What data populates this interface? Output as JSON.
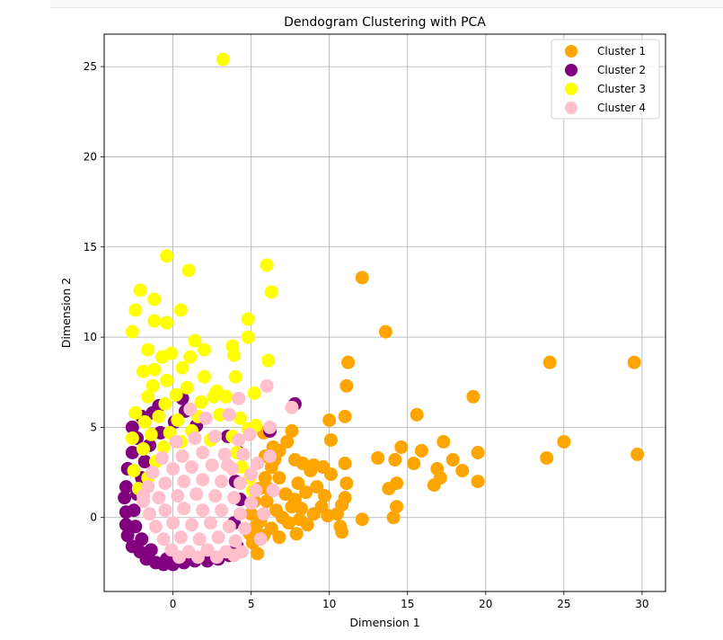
{
  "chart_data": {
    "type": "scatter",
    "title": "Dendogram Clustering with PCA",
    "xlabel": "Dimension 1",
    "ylabel": "Dimension 2",
    "xlim": [
      -4.4,
      31.5
    ],
    "ylim": [
      -4.1,
      26.8
    ],
    "xticks": [
      0,
      5,
      10,
      15,
      20,
      25,
      30
    ],
    "yticks": [
      0,
      5,
      10,
      15,
      20,
      25
    ],
    "grid": true,
    "legend_position": "top-right",
    "series": [
      {
        "name": "Cluster 1",
        "color": "#FFA500",
        "points": [
          [
            12.1,
            13.3
          ],
          [
            13.6,
            10.3
          ],
          [
            11.2,
            8.6
          ],
          [
            24.1,
            8.6
          ],
          [
            29.5,
            8.6
          ],
          [
            11.1,
            7.3
          ],
          [
            19.2,
            6.7
          ],
          [
            11.0,
            5.6
          ],
          [
            15.6,
            5.7
          ],
          [
            10.0,
            5.4
          ],
          [
            14.6,
            3.9
          ],
          [
            15.9,
            3.7
          ],
          [
            17.3,
            4.2
          ],
          [
            19.5,
            3.6
          ],
          [
            25.0,
            4.2
          ],
          [
            29.7,
            3.5
          ],
          [
            23.9,
            3.3
          ],
          [
            18.5,
            2.6
          ],
          [
            17.9,
            3.2
          ],
          [
            16.9,
            2.7
          ],
          [
            15.4,
            3.0
          ],
          [
            14.2,
            3.2
          ],
          [
            13.1,
            3.3
          ],
          [
            11.0,
            3.0
          ],
          [
            10.1,
            4.3
          ],
          [
            17.1,
            2.2
          ],
          [
            16.7,
            1.8
          ],
          [
            19.5,
            2.0
          ],
          [
            14.3,
            1.9
          ],
          [
            13.8,
            1.6
          ],
          [
            14.3,
            0.6
          ],
          [
            14.1,
            0.0
          ],
          [
            12.1,
            -0.1
          ],
          [
            11.1,
            1.9
          ],
          [
            11.0,
            1.1
          ],
          [
            10.8,
            0.7
          ],
          [
            10.5,
            0.2
          ],
          [
            10.7,
            -0.5
          ],
          [
            10.8,
            -0.8
          ],
          [
            10.1,
            2.4
          ],
          [
            9.6,
            2.8
          ],
          [
            9.0,
            2.9
          ],
          [
            8.8,
            2.6
          ],
          [
            8.3,
            3.0
          ],
          [
            7.8,
            3.2
          ],
          [
            7.6,
            4.8
          ],
          [
            7.3,
            4.2
          ],
          [
            6.8,
            3.7
          ],
          [
            6.4,
            3.9
          ],
          [
            5.8,
            4.7
          ],
          [
            8.0,
            1.9
          ],
          [
            8.5,
            1.4
          ],
          [
            9.2,
            1.7
          ],
          [
            9.5,
            0.6
          ],
          [
            9.0,
            0.2
          ],
          [
            8.6,
            -0.4
          ],
          [
            8.1,
            -0.1
          ],
          [
            7.6,
            0.6
          ],
          [
            7.2,
            1.3
          ],
          [
            6.8,
            2.2
          ],
          [
            6.3,
            2.8
          ],
          [
            5.9,
            2.2
          ],
          [
            5.5,
            1.6
          ],
          [
            5.2,
            0.9
          ],
          [
            5.0,
            0.2
          ],
          [
            5.3,
            -0.5
          ],
          [
            5.8,
            -1.0
          ],
          [
            6.3,
            -0.6
          ],
          [
            6.8,
            -1.1
          ],
          [
            7.4,
            -0.3
          ],
          [
            7.9,
            -0.9
          ],
          [
            8.2,
            0.5
          ],
          [
            6.6,
            0.4
          ],
          [
            6.0,
            0.9
          ],
          [
            5.6,
            -0.2
          ],
          [
            5.1,
            -1.4
          ],
          [
            5.4,
            -2.0
          ],
          [
            4.9,
            -0.9
          ],
          [
            6.1,
            1.6
          ],
          [
            7.0,
            0.0
          ],
          [
            7.8,
            1.0
          ],
          [
            6.5,
            3.2
          ],
          [
            5.9,
            3.4
          ],
          [
            9.7,
            1.2
          ],
          [
            9.9,
            0.1
          ]
        ]
      },
      {
        "name": "Cluster 2",
        "color": "#800080",
        "points": [
          [
            7.8,
            6.3
          ],
          [
            0.6,
            6.6
          ],
          [
            -0.9,
            6.2
          ],
          [
            -1.3,
            5.8
          ],
          [
            -2.0,
            5.6
          ],
          [
            -2.6,
            5.0
          ],
          [
            -2.3,
            4.4
          ],
          [
            -2.6,
            3.6
          ],
          [
            -2.9,
            2.7
          ],
          [
            -3.0,
            1.7
          ],
          [
            -3.1,
            1.1
          ],
          [
            -3.0,
            0.3
          ],
          [
            -3.0,
            -0.4
          ],
          [
            -2.9,
            -1.0
          ],
          [
            -2.6,
            -1.6
          ],
          [
            -2.1,
            -1.9
          ],
          [
            -1.7,
            -2.3
          ],
          [
            -1.1,
            -2.5
          ],
          [
            -0.6,
            -2.6
          ],
          [
            0.0,
            -2.6
          ],
          [
            -0.4,
            -2.3
          ],
          [
            -1.4,
            -1.8
          ],
          [
            -2.0,
            -1.2
          ],
          [
            -2.4,
            -0.5
          ],
          [
            -2.5,
            0.4
          ],
          [
            -2.3,
            1.3
          ],
          [
            -2.0,
            2.2
          ],
          [
            -1.8,
            3.1
          ],
          [
            -1.5,
            4.0
          ],
          [
            -0.8,
            4.7
          ],
          [
            0.1,
            5.3
          ],
          [
            0.8,
            5.9
          ],
          [
            1.5,
            5.1
          ],
          [
            3.5,
            4.5
          ],
          [
            4.2,
            3.6
          ],
          [
            6.2,
            4.8
          ],
          [
            4.0,
            2.0
          ],
          [
            4.3,
            1.0
          ],
          [
            3.9,
            -0.3
          ],
          [
            4.1,
            -1.6
          ],
          [
            3.6,
            -2.1
          ],
          [
            2.9,
            -2.3
          ],
          [
            2.2,
            -2.4
          ],
          [
            1.4,
            -2.4
          ],
          [
            0.7,
            -2.5
          ]
        ]
      },
      {
        "name": "Cluster 3",
        "color": "#FFFF00",
        "points": [
          [
            3.2,
            25.4
          ],
          [
            -0.4,
            14.5
          ],
          [
            1.0,
            13.7
          ],
          [
            6.0,
            14.0
          ],
          [
            6.3,
            12.5
          ],
          [
            -2.1,
            12.6
          ],
          [
            -1.2,
            12.1
          ],
          [
            -2.4,
            11.5
          ],
          [
            -0.4,
            10.8
          ],
          [
            0.5,
            11.5
          ],
          [
            -1.2,
            10.9
          ],
          [
            -2.6,
            10.3
          ],
          [
            4.8,
            11.0
          ],
          [
            4.8,
            10.0
          ],
          [
            1.4,
            9.8
          ],
          [
            2.0,
            9.3
          ],
          [
            3.8,
            9.5
          ],
          [
            3.9,
            9.0
          ],
          [
            -1.6,
            9.3
          ],
          [
            -0.7,
            8.9
          ],
          [
            -0.1,
            9.1
          ],
          [
            1.1,
            8.9
          ],
          [
            6.1,
            8.7
          ],
          [
            -1.9,
            8.1
          ],
          [
            -1.2,
            8.2
          ],
          [
            0.6,
            8.3
          ],
          [
            2.0,
            7.8
          ],
          [
            4.0,
            7.8
          ],
          [
            -1.3,
            7.3
          ],
          [
            -0.4,
            7.6
          ],
          [
            0.9,
            7.2
          ],
          [
            2.8,
            7.0
          ],
          [
            3.4,
            6.7
          ],
          [
            5.2,
            6.9
          ],
          [
            -1.6,
            6.7
          ],
          [
            -0.5,
            6.3
          ],
          [
            0.2,
            6.8
          ],
          [
            1.8,
            6.4
          ],
          [
            2.6,
            6.7
          ],
          [
            -2.4,
            5.8
          ],
          [
            -1.8,
            5.3
          ],
          [
            -0.9,
            5.6
          ],
          [
            0.3,
            5.4
          ],
          [
            1.6,
            5.6
          ],
          [
            3.0,
            5.7
          ],
          [
            4.3,
            5.5
          ],
          [
            -2.6,
            4.4
          ],
          [
            -1.4,
            4.6
          ],
          [
            -0.2,
            4.7
          ],
          [
            2.4,
            4.3
          ],
          [
            3.8,
            4.5
          ],
          [
            4.8,
            4.9
          ],
          [
            5.3,
            5.1
          ],
          [
            -1.9,
            3.8
          ],
          [
            -0.6,
            3.9
          ],
          [
            -2.5,
            2.6
          ],
          [
            -1.1,
            3.1
          ],
          [
            -1.6,
            2.2
          ],
          [
            -2.2,
            1.6
          ],
          [
            4.1,
            3.6
          ],
          [
            4.4,
            2.8
          ],
          [
            4.9,
            2.2
          ],
          [
            5.1,
            1.5
          ],
          [
            0.5,
            4.2
          ],
          [
            1.2,
            4.8
          ]
        ]
      },
      {
        "name": "Cluster 4",
        "color": "#FFC0CB",
        "points": [
          [
            6.0,
            7.3
          ],
          [
            4.2,
            6.6
          ],
          [
            7.6,
            6.1
          ],
          [
            1.1,
            6.0
          ],
          [
            2.1,
            5.5
          ],
          [
            3.6,
            5.7
          ],
          [
            6.2,
            5.0
          ],
          [
            4.9,
            4.6
          ],
          [
            0.2,
            4.2
          ],
          [
            1.4,
            4.4
          ],
          [
            2.7,
            4.5
          ],
          [
            4.2,
            4.3
          ],
          [
            6.2,
            3.4
          ],
          [
            -0.7,
            3.3
          ],
          [
            0.6,
            3.4
          ],
          [
            1.9,
            3.6
          ],
          [
            3.3,
            3.5
          ],
          [
            4.5,
            3.5
          ],
          [
            5.4,
            3.0
          ],
          [
            -1.3,
            2.5
          ],
          [
            0.0,
            2.7
          ],
          [
            1.2,
            2.8
          ],
          [
            2.5,
            2.9
          ],
          [
            3.8,
            2.7
          ],
          [
            5.0,
            2.4
          ],
          [
            -1.6,
            1.7
          ],
          [
            -0.5,
            1.9
          ],
          [
            0.7,
            2.0
          ],
          [
            1.9,
            2.1
          ],
          [
            3.1,
            2.0
          ],
          [
            4.3,
            1.9
          ],
          [
            5.3,
            1.5
          ],
          [
            -1.9,
            0.9
          ],
          [
            -0.9,
            1.1
          ],
          [
            0.3,
            1.2
          ],
          [
            1.5,
            1.3
          ],
          [
            2.7,
            1.2
          ],
          [
            3.9,
            1.1
          ],
          [
            5.0,
            0.8
          ],
          [
            -1.5,
            0.2
          ],
          [
            -0.5,
            0.4
          ],
          [
            0.7,
            0.5
          ],
          [
            1.9,
            0.4
          ],
          [
            3.1,
            0.4
          ],
          [
            4.3,
            0.2
          ],
          [
            -1.1,
            -0.5
          ],
          [
            0.0,
            -0.3
          ],
          [
            1.2,
            -0.4
          ],
          [
            2.4,
            -0.3
          ],
          [
            3.6,
            -0.5
          ],
          [
            4.6,
            -0.6
          ],
          [
            -0.6,
            -1.2
          ],
          [
            0.5,
            -1.1
          ],
          [
            1.7,
            -1.2
          ],
          [
            2.9,
            -1.1
          ],
          [
            4.0,
            -1.3
          ],
          [
            -0.1,
            -1.8
          ],
          [
            1.0,
            -1.9
          ],
          [
            2.2,
            -1.8
          ],
          [
            3.4,
            -1.9
          ],
          [
            4.4,
            -1.9
          ],
          [
            0.4,
            -2.2
          ],
          [
            1.6,
            -2.2
          ],
          [
            2.8,
            -2.2
          ],
          [
            3.9,
            -2.1
          ],
          [
            -1.9,
            1.2
          ],
          [
            6.4,
            1.5
          ],
          [
            5.8,
            0.2
          ],
          [
            5.6,
            -1.2
          ],
          [
            3.5,
            2.9
          ]
        ]
      }
    ]
  }
}
